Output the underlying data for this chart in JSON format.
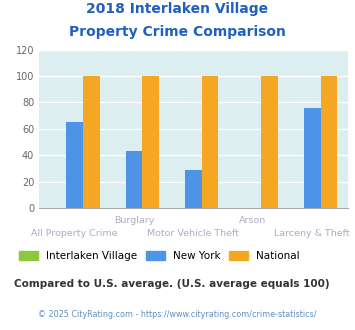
{
  "title_line1": "2018 Interlaken Village",
  "title_line2": "Property Crime Comparison",
  "title_color": "#2060c0",
  "categories": [
    "All Property Crime",
    "Burglary",
    "Motor Vehicle Theft",
    "Arson",
    "Larceny & Theft"
  ],
  "interlaken_values": [
    0,
    0,
    0,
    0,
    0
  ],
  "newyork_values": [
    65,
    43,
    29,
    0,
    76
  ],
  "national_values": [
    100,
    100,
    100,
    100,
    100
  ],
  "interlaken_color": "#8dc63f",
  "newyork_color": "#4d94e8",
  "national_color": "#f5a623",
  "plot_bg": "#ddeef0",
  "ylim": [
    0,
    120
  ],
  "yticks": [
    0,
    20,
    40,
    60,
    80,
    100,
    120
  ],
  "footnote": "Compared to U.S. average. (U.S. average equals 100)",
  "copyright": "© 2025 CityRating.com - https://www.cityrating.com/crime-statistics/",
  "legend_labels": [
    "Interlaken Village",
    "New York",
    "National"
  ],
  "xlabel_color": "#b0a8c8",
  "footnote_color": "#333333",
  "copyright_color": "#6090c0",
  "bar_width": 0.28,
  "group_positions": [
    0,
    1,
    2,
    3,
    4
  ]
}
